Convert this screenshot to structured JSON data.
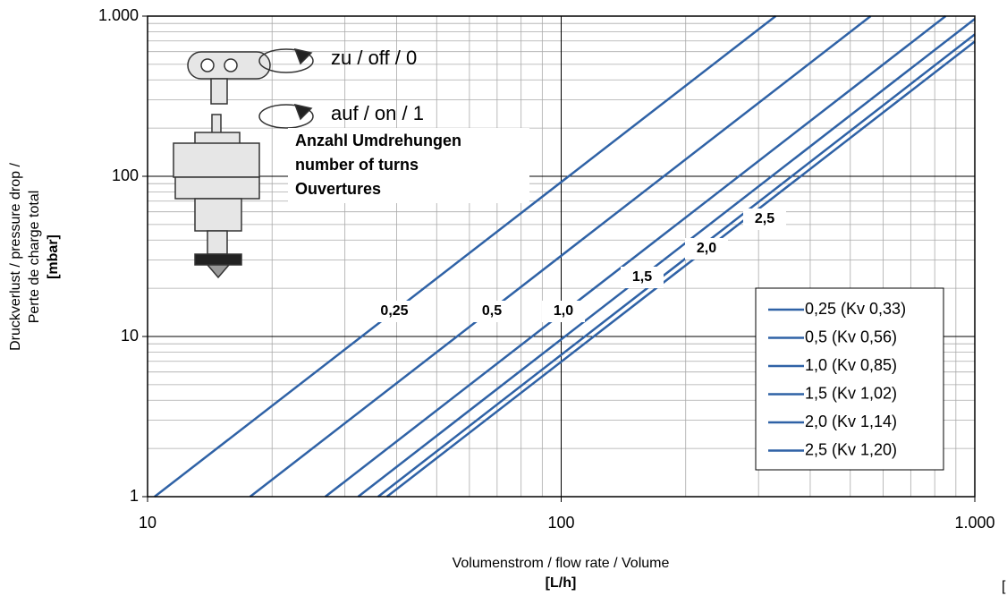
{
  "chart_data": {
    "type": "line",
    "x_title": "Volumenstrom / flow rate / Volume",
    "x_unit": "[L/h]",
    "y_title": [
      "Druckverlust / pressure drop /",
      "Perte de charge total"
    ],
    "y_unit": "[mbar]",
    "corner_fragment": "[",
    "legend_title": null,
    "annotations": {
      "settings": [
        "zu / off / 0",
        "auf / on / 1"
      ],
      "turns": [
        "Anzahl Umdrehungen",
        "number of turns",
        "Ouvertures"
      ]
    },
    "line_labels": [
      "0,25",
      "0,5",
      "1,0",
      "1,5",
      "2,0",
      "2,5"
    ],
    "series": [
      {
        "name": "0,25 (Kv 0,33)",
        "color": "#2f62a6",
        "x": [
          10.4,
          330
        ],
        "values": [
          1,
          1000
        ]
      },
      {
        "name": "0,5 (Kv 0,56)",
        "color": "#2f62a6",
        "x": [
          17.7,
          560
        ],
        "values": [
          1,
          1000
        ]
      },
      {
        "name": "1,0 (Kv 0,85)",
        "color": "#2f62a6",
        "x": [
          26.9,
          850
        ],
        "values": [
          1,
          1000
        ]
      },
      {
        "name": "1,5 (Kv 1,02)",
        "color": "#2f62a6",
        "x": [
          32.3,
          1000
        ],
        "values": [
          1,
          961
        ]
      },
      {
        "name": "2,0 (Kv 1,14)",
        "color": "#2f62a6",
        "x": [
          36.1,
          1000
        ],
        "values": [
          1,
          769
        ]
      },
      {
        "name": "2,5 (Kv 1,20)",
        "color": "#2f62a6",
        "x": [
          37.9,
          1000
        ],
        "values": [
          1,
          694
        ]
      }
    ],
    "xlim": [
      10,
      1000
    ],
    "ylim": [
      1,
      1000
    ],
    "xticks": [
      10,
      100,
      {
        "value": 1000,
        "label": "1.000"
      }
    ],
    "yticks": [
      1,
      10,
      100,
      {
        "value": 1000,
        "label": "1.000"
      }
    ],
    "log_x": true,
    "log_y": true,
    "grid": true,
    "minor_grid": true,
    "legend": "lower right"
  }
}
